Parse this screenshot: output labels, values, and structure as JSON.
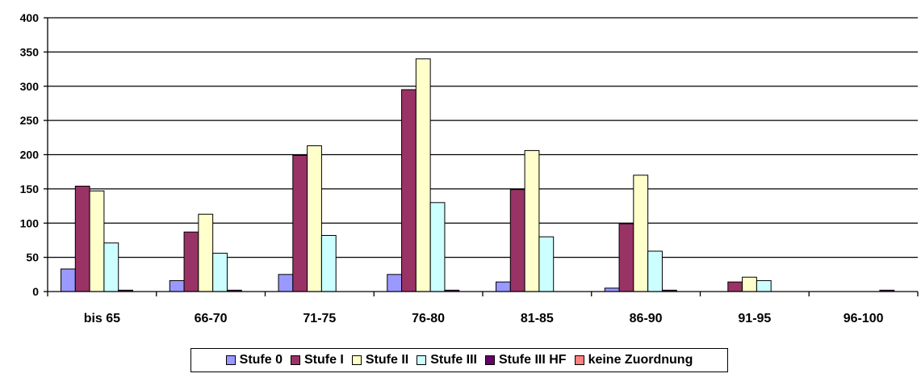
{
  "chart_data": {
    "type": "bar",
    "categories": [
      "bis 65",
      "66-70",
      "71-75",
      "76-80",
      "81-85",
      "86-90",
      "91-95",
      "96-100"
    ],
    "series": [
      {
        "name": "Stufe 0",
        "color": "#9999ff",
        "values": [
          33,
          16,
          25,
          25,
          14,
          5,
          0,
          0
        ]
      },
      {
        "name": "Stufe I",
        "color": "#993366",
        "values": [
          154,
          87,
          199,
          295,
          149,
          99,
          14,
          0
        ]
      },
      {
        "name": "Stufe II",
        "color": "#ffffcc",
        "values": [
          147,
          113,
          213,
          340,
          206,
          170,
          21,
          0
        ]
      },
      {
        "name": "Stufe III",
        "color": "#ccffff",
        "values": [
          71,
          56,
          82,
          130,
          80,
          59,
          16,
          0
        ]
      },
      {
        "name": "Stufe III HF",
        "color": "#660066",
        "values": [
          2,
          2,
          0,
          2,
          0,
          2,
          0,
          2
        ]
      },
      {
        "name": "keine Zuordnung",
        "color": "#ff8080",
        "values": [
          0,
          0,
          0,
          0,
          0,
          0,
          0,
          0
        ]
      }
    ],
    "yticks": [
      "0",
      "50",
      "100",
      "150",
      "200",
      "250",
      "300",
      "350",
      "400"
    ],
    "ylim": [
      0,
      400
    ],
    "grid": true,
    "legend_position": "bottom"
  }
}
